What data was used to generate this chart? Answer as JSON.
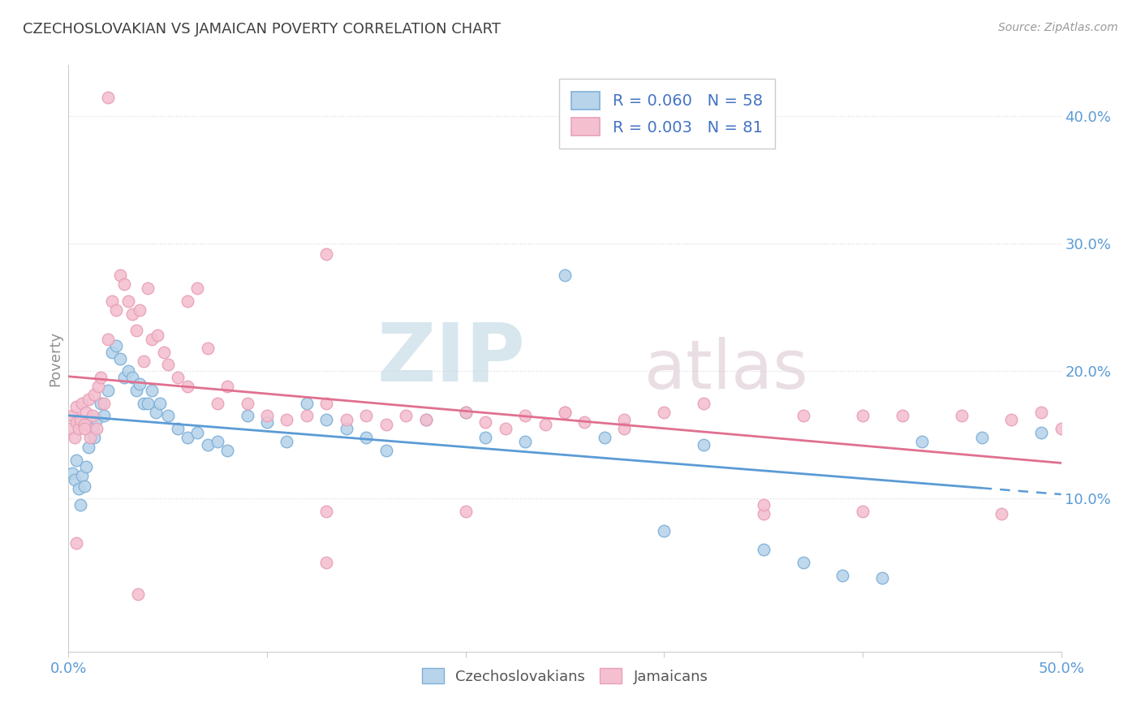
{
  "title": "CZECHOSLOVAKIAN VS JAMAICAN POVERTY CORRELATION CHART",
  "source": "Source: ZipAtlas.com",
  "ylabel": "Poverty",
  "xlim": [
    0.0,
    0.5
  ],
  "ylim": [
    -0.02,
    0.44
  ],
  "yticks": [
    0.1,
    0.2,
    0.3,
    0.4
  ],
  "yticklabels": [
    "10.0%",
    "20.0%",
    "30.0%",
    "40.0%"
  ],
  "xtick_vals": [
    0.0,
    0.1,
    0.2,
    0.3,
    0.4,
    0.5
  ],
  "legend_r_czech": "R = 0.060",
  "legend_n_czech": "N = 58",
  "legend_r_jamaican": "R = 0.003",
  "legend_n_jamaican": "N = 81",
  "czech_color": "#b8d4ea",
  "jamaican_color": "#f4c0d0",
  "czech_edge_color": "#7fb0d8",
  "jamaican_edge_color": "#e8a0b8",
  "czech_line_color": "#5b9bd5",
  "jamaican_line_color": "#e07090",
  "watermark_zip_color": "#c8dce8",
  "watermark_atlas_color": "#ddc8d4",
  "background_color": "#ffffff",
  "grid_color": "#dddddd",
  "title_color": "#404040",
  "ylabel_color": "#909090",
  "tick_color": "#5b9bd5",
  "legend_text_color": "#4472c4",
  "source_color": "#999999",
  "czech_points_x": [
    0.002,
    0.003,
    0.004,
    0.005,
    0.006,
    0.007,
    0.008,
    0.009,
    0.01,
    0.012,
    0.013,
    0.014,
    0.016,
    0.018,
    0.02,
    0.022,
    0.024,
    0.026,
    0.028,
    0.03,
    0.032,
    0.034,
    0.036,
    0.038,
    0.04,
    0.042,
    0.044,
    0.046,
    0.05,
    0.055,
    0.06,
    0.065,
    0.07,
    0.075,
    0.08,
    0.09,
    0.1,
    0.11,
    0.12,
    0.13,
    0.14,
    0.15,
    0.16,
    0.18,
    0.2,
    0.21,
    0.23,
    0.25,
    0.27,
    0.3,
    0.32,
    0.35,
    0.37,
    0.39,
    0.41,
    0.43,
    0.46,
    0.49
  ],
  "czech_points_y": [
    0.12,
    0.115,
    0.13,
    0.108,
    0.095,
    0.118,
    0.11,
    0.125,
    0.14,
    0.155,
    0.148,
    0.162,
    0.175,
    0.165,
    0.185,
    0.215,
    0.22,
    0.21,
    0.195,
    0.2,
    0.195,
    0.185,
    0.19,
    0.175,
    0.175,
    0.185,
    0.168,
    0.175,
    0.165,
    0.155,
    0.148,
    0.152,
    0.142,
    0.145,
    0.138,
    0.165,
    0.16,
    0.145,
    0.175,
    0.162,
    0.155,
    0.148,
    0.138,
    0.162,
    0.168,
    0.148,
    0.145,
    0.275,
    0.148,
    0.075,
    0.142,
    0.06,
    0.05,
    0.04,
    0.038,
    0.145,
    0.148,
    0.152
  ],
  "jamaican_points_x": [
    0.001,
    0.002,
    0.003,
    0.004,
    0.004,
    0.005,
    0.006,
    0.007,
    0.008,
    0.009,
    0.01,
    0.011,
    0.012,
    0.013,
    0.014,
    0.015,
    0.016,
    0.018,
    0.02,
    0.022,
    0.024,
    0.026,
    0.028,
    0.03,
    0.032,
    0.034,
    0.036,
    0.038,
    0.04,
    0.042,
    0.045,
    0.048,
    0.05,
    0.055,
    0.06,
    0.065,
    0.07,
    0.075,
    0.08,
    0.09,
    0.1,
    0.11,
    0.12,
    0.13,
    0.14,
    0.15,
    0.16,
    0.17,
    0.18,
    0.2,
    0.21,
    0.22,
    0.23,
    0.24,
    0.25,
    0.26,
    0.28,
    0.3,
    0.32,
    0.35,
    0.37,
    0.4,
    0.42,
    0.45,
    0.475,
    0.49,
    0.5,
    0.13,
    0.06,
    0.02,
    0.008,
    0.004,
    0.28,
    0.2,
    0.13,
    0.35,
    0.47,
    0.4,
    0.13,
    0.25,
    0.035
  ],
  "jamaican_points_y": [
    0.155,
    0.165,
    0.148,
    0.16,
    0.172,
    0.155,
    0.162,
    0.175,
    0.158,
    0.168,
    0.178,
    0.148,
    0.165,
    0.182,
    0.155,
    0.188,
    0.195,
    0.175,
    0.225,
    0.255,
    0.248,
    0.275,
    0.268,
    0.255,
    0.245,
    0.232,
    0.248,
    0.208,
    0.265,
    0.225,
    0.228,
    0.215,
    0.205,
    0.195,
    0.188,
    0.265,
    0.218,
    0.175,
    0.188,
    0.175,
    0.165,
    0.162,
    0.165,
    0.175,
    0.162,
    0.165,
    0.158,
    0.165,
    0.162,
    0.168,
    0.16,
    0.155,
    0.165,
    0.158,
    0.168,
    0.16,
    0.162,
    0.168,
    0.175,
    0.088,
    0.165,
    0.165,
    0.165,
    0.165,
    0.162,
    0.168,
    0.155,
    0.292,
    0.255,
    0.415,
    0.155,
    0.065,
    0.155,
    0.09,
    0.09,
    0.095,
    0.088,
    0.09,
    0.05,
    0.168,
    0.025
  ]
}
